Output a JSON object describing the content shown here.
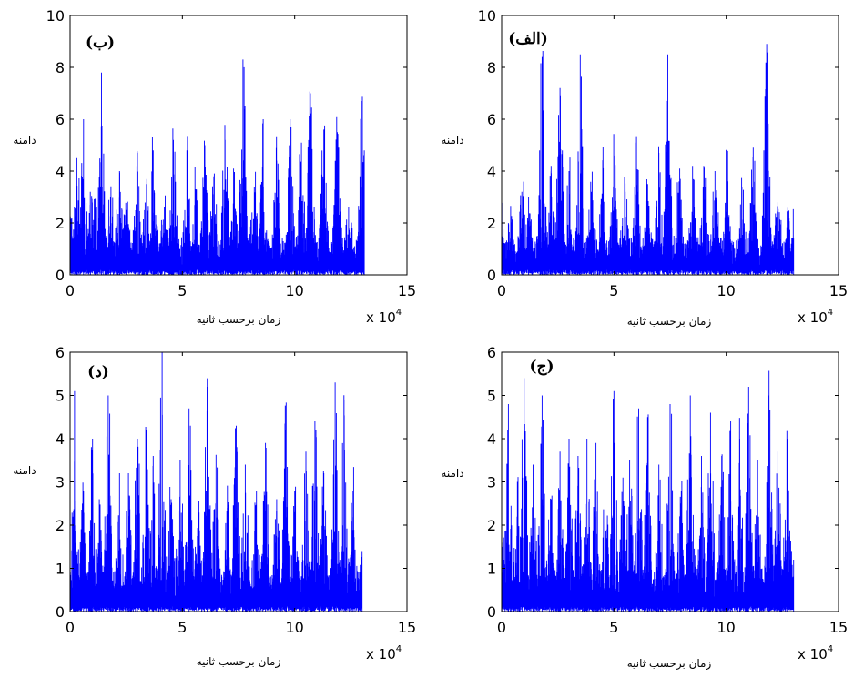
{
  "chart_data": [
    {
      "type": "line",
      "panel_label": "(ب)",
      "xlabel": "زمان برحسب ثانیه",
      "ylabel": "دامنه",
      "x_multiplier": "x 10",
      "x_multiplier_exp": "4",
      "xlim": [
        0,
        15
      ],
      "ylim": [
        0,
        10
      ],
      "xticks": [
        0,
        5,
        10,
        15
      ],
      "yticks": [
        0,
        2,
        4,
        6,
        8,
        10
      ],
      "x_tick_labels": [
        "0",
        "5",
        "10",
        "15"
      ],
      "y_tick_labels": [
        "0",
        "2",
        "4",
        "6",
        "8",
        "10"
      ],
      "line_color": "#0000ff",
      "series": [
        {
          "x": [
            0,
            0.3,
            0.6,
            0.9,
            1.1,
            1.4,
            1.8,
            2.2,
            2.5,
            3.0,
            3.4,
            3.7,
            4.2,
            4.6,
            5.2,
            5.6,
            6.0,
            6.4,
            6.9,
            7.3,
            7.7,
            8.2,
            8.6,
            9.2,
            9.8,
            10.3,
            10.7,
            11.3,
            11.9,
            12.4,
            13.0,
            13.1
          ],
          "y": [
            1.8,
            4.5,
            6.0,
            3.2,
            2.5,
            7.8,
            3.0,
            4.0,
            2.5,
            4.7,
            3.5,
            4.8,
            2.6,
            5.2,
            4.8,
            3.3,
            5.0,
            3.8,
            5.2,
            3.6,
            8.3,
            3.4,
            6.0,
            4.4,
            6.0,
            5.1,
            7.0,
            5.6,
            5.5,
            2.6,
            6.7,
            4.8
          ]
        }
      ]
    },
    {
      "type": "line",
      "panel_label": "(الف)",
      "xlabel": "زمان برحسب ثانیه",
      "ylabel": "دامنه",
      "x_multiplier": "x 10",
      "x_multiplier_exp": "4",
      "xlim": [
        0,
        15
      ],
      "ylim": [
        0,
        10
      ],
      "xticks": [
        0,
        5,
        10,
        15
      ],
      "yticks": [
        0,
        2,
        4,
        6,
        8,
        10
      ],
      "x_tick_labels": [
        "0",
        "5",
        "10",
        "15"
      ],
      "y_tick_labels": [
        "0",
        "2",
        "4",
        "6",
        "8",
        "10"
      ],
      "line_color": "#0000ff",
      "series": [
        {
          "x": [
            0,
            0.4,
            0.9,
            1.2,
            1.8,
            2.2,
            2.6,
            3.0,
            3.5,
            4.0,
            4.5,
            5.0,
            5.5,
            6.0,
            6.5,
            7.0,
            7.4,
            7.9,
            8.5,
            9.0,
            9.5,
            10.0,
            10.7,
            11.2,
            11.8,
            12.3,
            12.8,
            13.0
          ],
          "y": [
            3.0,
            2.0,
            3.2,
            3.0,
            8.4,
            4.2,
            7.2,
            4.0,
            8.5,
            3.2,
            4.3,
            4.6,
            3.2,
            5.1,
            3.5,
            4.7,
            8.5,
            3.6,
            4.2,
            4.2,
            4.0,
            4.7,
            3.4,
            4.9,
            8.9,
            2.8,
            2.2,
            1.4
          ]
        }
      ]
    },
    {
      "type": "line",
      "panel_label": "(د)",
      "xlabel": "زمان برحسب ثانیه",
      "ylabel": "دامنه",
      "x_multiplier": "x 10",
      "x_multiplier_exp": "4",
      "xlim": [
        0,
        15
      ],
      "ylim": [
        0,
        6
      ],
      "xticks": [
        0,
        5,
        10,
        15
      ],
      "yticks": [
        0,
        1,
        2,
        3,
        4,
        5,
        6
      ],
      "x_tick_labels": [
        "0",
        "5",
        "10",
        "15"
      ],
      "y_tick_labels": [
        "0",
        "1",
        "2",
        "3",
        "4",
        "5",
        "6"
      ],
      "line_color": "#0000ff",
      "series": [
        {
          "x": [
            0,
            0.2,
            0.6,
            1.0,
            1.3,
            1.7,
            2.2,
            2.6,
            3.0,
            3.4,
            3.7,
            4.1,
            4.5,
            4.9,
            5.3,
            5.7,
            6.1,
            6.5,
            7.0,
            7.4,
            7.8,
            8.3,
            8.7,
            9.2,
            9.6,
            10.0,
            10.5,
            10.9,
            11.3,
            11.8,
            12.2,
            12.6,
            13.0
          ],
          "y": [
            1.5,
            5.1,
            2.8,
            4.0,
            2.6,
            5.0,
            3.2,
            3.2,
            4.0,
            4.2,
            3.6,
            6.0,
            2.6,
            3.5,
            4.7,
            2.5,
            5.2,
            3.6,
            2.4,
            4.3,
            3.4,
            2.8,
            3.9,
            2.6,
            4.2,
            2.8,
            3.7,
            4.4,
            3.2,
            5.3,
            4.9,
            2.8,
            1.4
          ]
        }
      ]
    },
    {
      "type": "line",
      "panel_label": "(ج)",
      "xlabel": "زمان برحسب ثانیه",
      "ylabel": "دامنه",
      "x_multiplier": "x 10",
      "x_multiplier_exp": "4",
      "xlim": [
        0,
        15
      ],
      "ylim": [
        0,
        6
      ],
      "xticks": [
        0,
        5,
        10,
        15
      ],
      "yticks": [
        0,
        1,
        2,
        3,
        4,
        5,
        6
      ],
      "x_tick_labels": [
        "0",
        "5",
        "10",
        "15"
      ],
      "y_tick_labels": [
        "0",
        "1",
        "2",
        "3",
        "4",
        "5",
        "6"
      ],
      "line_color": "#0000ff",
      "series": [
        {
          "x": [
            0,
            0.3,
            0.7,
            1.0,
            1.4,
            1.8,
            2.2,
            2.6,
            3.0,
            3.4,
            3.8,
            4.2,
            4.6,
            5.0,
            5.4,
            5.7,
            6.1,
            6.5,
            7.0,
            7.5,
            8.0,
            8.4,
            8.9,
            9.3,
            9.8,
            10.2,
            10.6,
            11.0,
            11.4,
            11.9,
            12.3,
            12.7,
            13.0
          ],
          "y": [
            2.7,
            4.8,
            3.0,
            5.4,
            3.4,
            5.0,
            2.6,
            3.7,
            4.0,
            3.6,
            4.0,
            3.9,
            3.5,
            5.1,
            3.1,
            3.5,
            4.7,
            4.5,
            3.4,
            4.8,
            2.8,
            5.0,
            3.6,
            4.6,
            3.6,
            4.4,
            4.0,
            5.2,
            3.5,
            5.0,
            3.7,
            4.0,
            1.2
          ]
        }
      ]
    }
  ]
}
